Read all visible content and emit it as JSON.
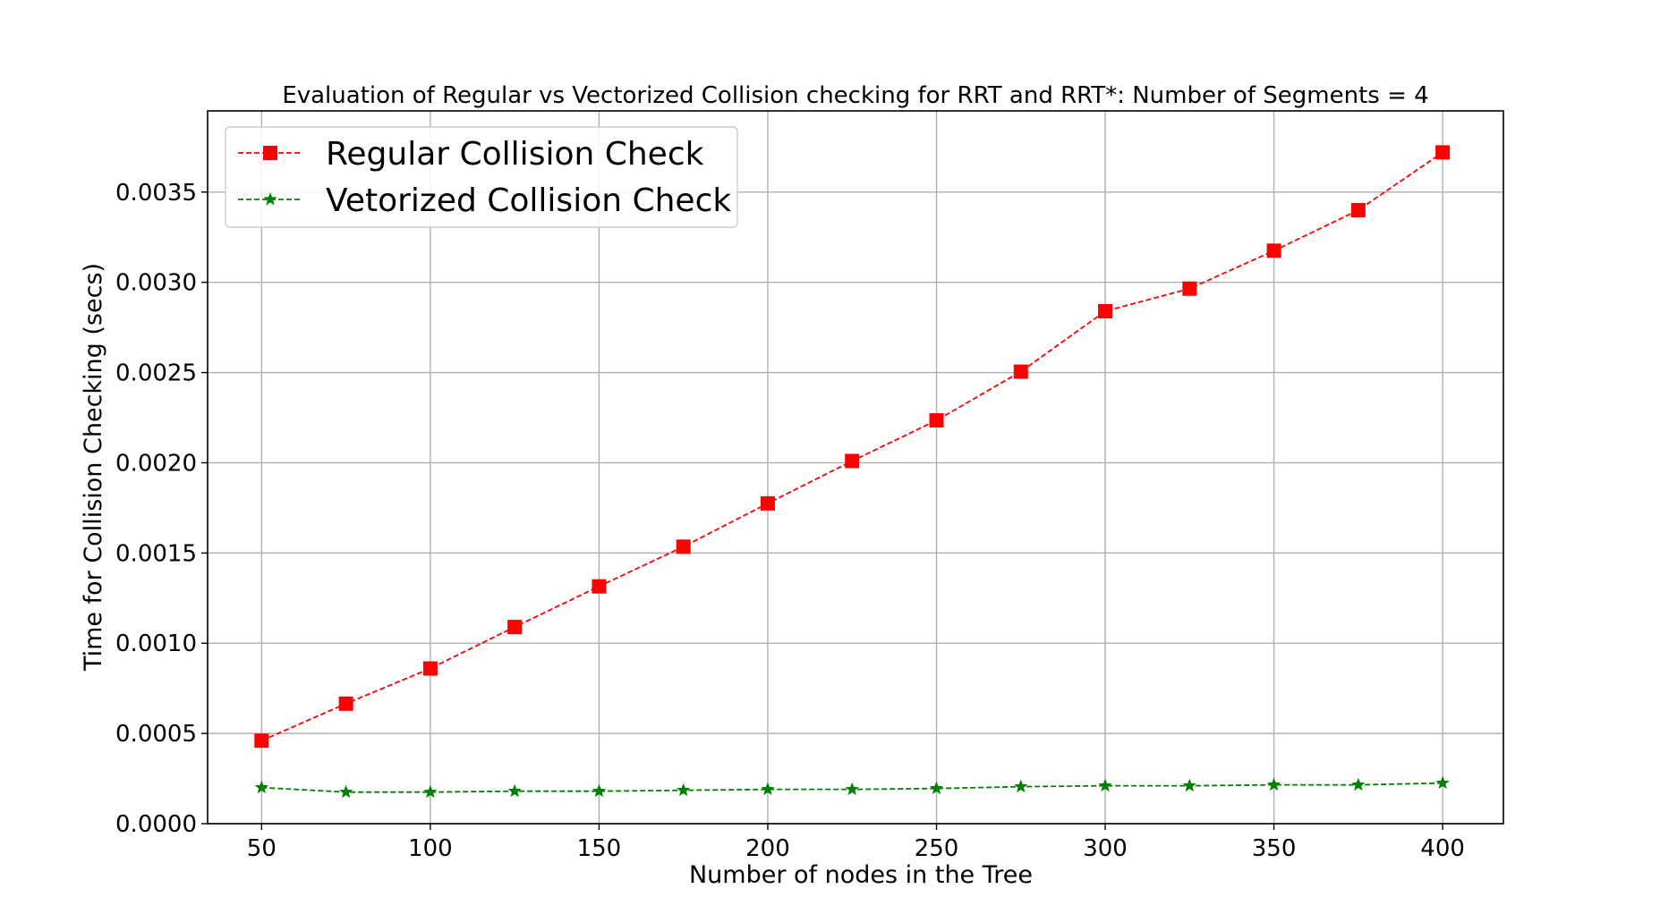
{
  "chart_data": {
    "type": "line",
    "title": "Evaluation of Regular vs Vectorized Collision checking for RRT and RRT*: Number of Segments = 4",
    "xlabel": "Number of nodes in the Tree",
    "ylabel": "Time for Collision Checking (secs)",
    "x": [
      50,
      75,
      100,
      125,
      150,
      175,
      200,
      225,
      250,
      275,
      300,
      325,
      350,
      375,
      400
    ],
    "xlim": [
      34,
      418
    ],
    "ylim": [
      0,
      0.00395
    ],
    "xticks": [
      50,
      100,
      150,
      200,
      250,
      300,
      350,
      400
    ],
    "xtick_labels": [
      "50",
      "100",
      "150",
      "200",
      "250",
      "300",
      "350",
      "400"
    ],
    "yticks": [
      0,
      0.0005,
      0.001,
      0.0015,
      0.002,
      0.0025,
      0.003,
      0.0035
    ],
    "ytick_labels": [
      "0.0000",
      "0.0005",
      "0.0010",
      "0.0015",
      "0.0020",
      "0.0025",
      "0.0030",
      "0.0035"
    ],
    "grid": true,
    "legend_position": "top-left",
    "series": [
      {
        "name": "Regular Collision Check",
        "color": "#ff0000",
        "marker": "square",
        "line_style": "dashed",
        "values": [
          0.00046,
          0.000665,
          0.00086,
          0.00109,
          0.001315,
          0.001535,
          0.001775,
          0.00201,
          0.002235,
          0.002505,
          0.00284,
          0.002965,
          0.003175,
          0.0034,
          0.00372
        ]
      },
      {
        "name": "Vetorized Collision Check",
        "color": "#008000",
        "marker": "star",
        "line_style": "dashed",
        "values": [
          0.0002,
          0.000175,
          0.000175,
          0.00018,
          0.00018,
          0.000185,
          0.00019,
          0.00019,
          0.000195,
          0.000205,
          0.00021,
          0.00021,
          0.000215,
          0.000215,
          0.000225
        ]
      }
    ]
  }
}
